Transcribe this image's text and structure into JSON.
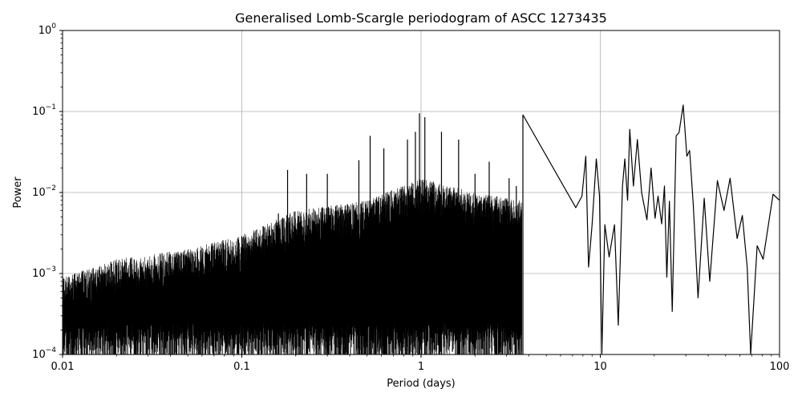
{
  "chart_data": {
    "type": "line",
    "title": "Generalised Lomb-Scargle periodogram of ASCC 1273435",
    "xlabel": "Period (days)",
    "ylabel": "Power",
    "xscale": "log",
    "yscale": "log",
    "xlim": [
      0.01,
      100
    ],
    "ylim": [
      0.0001,
      1
    ],
    "grid": true,
    "line_color": "#000000",
    "x_ticks": [
      {
        "value": 0.01,
        "label": "0.01"
      },
      {
        "value": 0.1,
        "label": "0.1"
      },
      {
        "value": 1,
        "label": "1"
      },
      {
        "value": 10,
        "label": "10"
      },
      {
        "value": 100,
        "label": "100"
      }
    ],
    "y_ticks": [
      {
        "value": 0.0001,
        "base": "10",
        "exp": "−4"
      },
      {
        "value": 0.001,
        "base": "10",
        "exp": "−3"
      },
      {
        "value": 0.01,
        "base": "10",
        "exp": "−2"
      },
      {
        "value": 0.1,
        "base": "10",
        "exp": "−1"
      },
      {
        "value": 1,
        "base": "10",
        "exp": "0"
      }
    ],
    "series": [
      {
        "points": [
          [
            3.7,
            0.091
          ],
          [
            7.3,
            0.0065
          ],
          [
            7.9,
            0.009
          ],
          [
            8.3,
            0.028
          ],
          [
            8.6,
            0.0012
          ],
          [
            9.0,
            0.004
          ],
          [
            9.5,
            0.026
          ],
          [
            9.9,
            0.009
          ],
          [
            10.2,
            0.0001
          ],
          [
            10.6,
            0.004
          ],
          [
            11.2,
            0.0016
          ],
          [
            12.0,
            0.004
          ],
          [
            12.6,
            0.00023
          ],
          [
            13.3,
            0.012
          ],
          [
            13.7,
            0.026
          ],
          [
            14.2,
            0.008
          ],
          [
            14.6,
            0.06
          ],
          [
            15.3,
            0.012
          ],
          [
            16.1,
            0.045
          ],
          [
            17.0,
            0.01
          ],
          [
            18.2,
            0.0046
          ],
          [
            19.2,
            0.02
          ],
          [
            20.2,
            0.0048
          ],
          [
            21.0,
            0.009
          ],
          [
            22.0,
            0.0041
          ],
          [
            22.8,
            0.012
          ],
          [
            23.5,
            0.0009
          ],
          [
            24.3,
            0.0078
          ],
          [
            25.2,
            0.00034
          ],
          [
            26.5,
            0.05
          ],
          [
            27.5,
            0.055
          ],
          [
            29.0,
            0.12
          ],
          [
            30.4,
            0.028
          ],
          [
            31.5,
            0.033
          ],
          [
            33.0,
            0.0072
          ],
          [
            35.1,
            0.0005
          ],
          [
            38.0,
            0.0085
          ],
          [
            40.8,
            0.0008
          ],
          [
            45.0,
            0.014
          ],
          [
            49.0,
            0.006
          ],
          [
            53.0,
            0.015
          ],
          [
            58.0,
            0.0027
          ],
          [
            62.0,
            0.0052
          ],
          [
            66.0,
            0.0012
          ],
          [
            69.0,
            0.0001
          ],
          [
            75.0,
            0.0022
          ],
          [
            81.0,
            0.0015
          ],
          [
            92.0,
            0.0095
          ],
          [
            100.0,
            0.008
          ]
        ],
        "noise_envelope": [
          [
            0.01,
            0.0009
          ],
          [
            0.02,
            0.0015
          ],
          [
            0.05,
            0.002
          ],
          [
            0.1,
            0.003
          ],
          [
            0.2,
            0.006
          ],
          [
            0.5,
            0.008
          ],
          [
            1.0,
            0.015
          ],
          [
            2.0,
            0.01
          ],
          [
            5.0,
            0.007
          ],
          [
            7.0,
            0.006
          ]
        ],
        "peaks": [
          [
            0.15,
            0.0035
          ],
          [
            0.16,
            0.0055
          ],
          [
            0.18,
            0.019
          ],
          [
            0.23,
            0.017
          ],
          [
            0.3,
            0.017
          ],
          [
            0.45,
            0.025
          ],
          [
            0.52,
            0.05
          ],
          [
            0.62,
            0.035
          ],
          [
            0.84,
            0.045
          ],
          [
            0.93,
            0.056
          ],
          [
            0.98,
            0.095
          ],
          [
            1.05,
            0.085
          ],
          [
            1.3,
            0.056
          ],
          [
            1.62,
            0.045
          ],
          [
            2.0,
            0.017
          ],
          [
            2.4,
            0.024
          ],
          [
            3.1,
            0.015
          ],
          [
            3.4,
            0.012
          ],
          [
            3.7,
            0.091
          ]
        ]
      }
    ]
  }
}
